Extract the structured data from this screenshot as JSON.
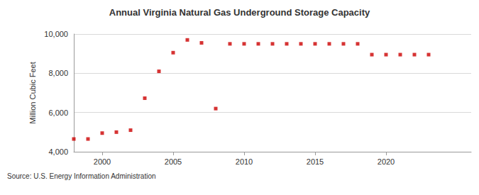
{
  "chart_data": {
    "type": "scatter",
    "title": "Annual Virginia Natural Gas Underground Storage Capacity",
    "y_label": "Million Cubic Feet",
    "source": "Source: U.S. Energy Information Administration",
    "x": [
      1998,
      1999,
      2000,
      2001,
      2002,
      2003,
      2004,
      2005,
      2006,
      2007,
      2008,
      2009,
      2010,
      2011,
      2012,
      2013,
      2014,
      2015,
      2016,
      2017,
      2018,
      2019,
      2020,
      2021,
      2022,
      2023
    ],
    "values": [
      4650,
      4650,
      4950,
      5000,
      5100,
      6730,
      8100,
      9050,
      9700,
      9550,
      6200,
      9500,
      9500,
      9500,
      9500,
      9500,
      9500,
      9500,
      9500,
      9500,
      9500,
      8950,
      8950,
      8950,
      8950,
      8950
    ],
    "color": "#cc0000",
    "marker": "square",
    "xlim": [
      1998,
      2026
    ],
    "xticks": [
      2000,
      2005,
      2010,
      2015,
      2020
    ],
    "ylim": [
      4000,
      10000
    ],
    "yticks": [
      {
        "value": 4000,
        "label": "4,000"
      },
      {
        "value": 6000,
        "label": "6,000"
      },
      {
        "value": 8000,
        "label": "8,000"
      },
      {
        "value": 10000,
        "label": "10,000"
      }
    ],
    "grid": true
  }
}
